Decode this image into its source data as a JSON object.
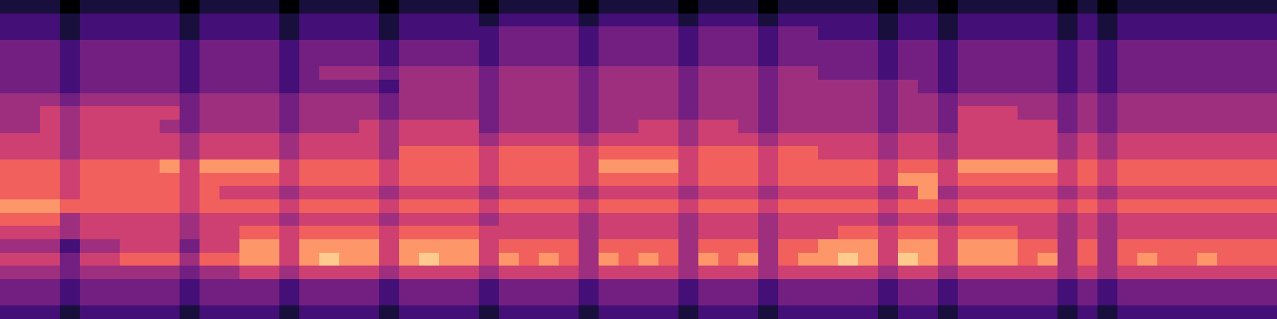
{
  "chart_data": {
    "type": "heatmap",
    "tick_labels": false,
    "zlim": [
      0,
      9
    ],
    "cells": [
      [
        1,
        1,
        1,
        0,
        1,
        1,
        1,
        1,
        1,
        0,
        1,
        1,
        1,
        1,
        0,
        1,
        1,
        1,
        1,
        0,
        1,
        1,
        1,
        1,
        0,
        1,
        1,
        1,
        1,
        0,
        1,
        1,
        1,
        1,
        0,
        1,
        1,
        1,
        0,
        1,
        1,
        1,
        1,
        1,
        0,
        1,
        1,
        0,
        1,
        1,
        1,
        1,
        1,
        0,
        1,
        0,
        1,
        1,
        1,
        1,
        1,
        1,
        1,
        1
      ],
      [
        2,
        2,
        2,
        1,
        2,
        2,
        2,
        2,
        2,
        1,
        2,
        2,
        2,
        2,
        1,
        2,
        2,
        2,
        2,
        1,
        2,
        2,
        2,
        2,
        1,
        2,
        2,
        2,
        2,
        1,
        2,
        2,
        2,
        2,
        1,
        2,
        2,
        2,
        1,
        2,
        2,
        2,
        2,
        2,
        1,
        2,
        2,
        1,
        2,
        2,
        2,
        2,
        2,
        1,
        2,
        1,
        2,
        2,
        2,
        2,
        2,
        2,
        2,
        2
      ],
      [
        2,
        2,
        2,
        1,
        2,
        2,
        2,
        2,
        2,
        1,
        2,
        2,
        2,
        2,
        1,
        2,
        2,
        2,
        2,
        1,
        2,
        2,
        2,
        2,
        2,
        3,
        3,
        3,
        3,
        2,
        3,
        3,
        3,
        3,
        2,
        3,
        3,
        3,
        2,
        3,
        3,
        2,
        2,
        2,
        1,
        2,
        2,
        1,
        2,
        2,
        2,
        2,
        2,
        1,
        2,
        1,
        2,
        2,
        2,
        2,
        2,
        2,
        2,
        2
      ],
      [
        3,
        3,
        3,
        2,
        3,
        3,
        3,
        3,
        3,
        2,
        3,
        3,
        3,
        3,
        2,
        3,
        3,
        3,
        3,
        2,
        3,
        3,
        3,
        3,
        2,
        3,
        3,
        3,
        3,
        2,
        3,
        3,
        3,
        3,
        2,
        3,
        3,
        3,
        2,
        3,
        3,
        3,
        3,
        3,
        2,
        3,
        3,
        2,
        3,
        3,
        3,
        3,
        3,
        2,
        3,
        2,
        3,
        3,
        3,
        3,
        3,
        3,
        3,
        3
      ],
      [
        3,
        3,
        3,
        2,
        3,
        3,
        3,
        3,
        3,
        2,
        3,
        3,
        3,
        3,
        2,
        3,
        3,
        3,
        3,
        2,
        3,
        3,
        3,
        3,
        2,
        3,
        3,
        3,
        3,
        2,
        3,
        3,
        3,
        3,
        2,
        3,
        3,
        3,
        2,
        3,
        3,
        3,
        3,
        3,
        2,
        3,
        3,
        2,
        3,
        3,
        3,
        3,
        3,
        2,
        3,
        2,
        3,
        3,
        3,
        3,
        3,
        3,
        3,
        3
      ],
      [
        3,
        3,
        3,
        2,
        3,
        3,
        3,
        3,
        3,
        2,
        3,
        3,
        3,
        3,
        2,
        3,
        4,
        4,
        4,
        3,
        4,
        4,
        4,
        4,
        3,
        4,
        4,
        4,
        4,
        3,
        4,
        4,
        4,
        4,
        3,
        4,
        4,
        4,
        3,
        4,
        4,
        3,
        3,
        3,
        2,
        3,
        3,
        2,
        3,
        3,
        3,
        3,
        3,
        2,
        3,
        2,
        3,
        3,
        3,
        3,
        3,
        3,
        3,
        3
      ],
      [
        3,
        3,
        3,
        2,
        3,
        3,
        3,
        3,
        3,
        2,
        3,
        3,
        3,
        3,
        2,
        3,
        3,
        3,
        3,
        2,
        4,
        4,
        4,
        4,
        3,
        4,
        4,
        4,
        4,
        3,
        4,
        4,
        4,
        4,
        3,
        4,
        4,
        4,
        3,
        4,
        4,
        4,
        4,
        4,
        3,
        4,
        3,
        2,
        3,
        3,
        3,
        3,
        3,
        2,
        3,
        2,
        3,
        3,
        3,
        3,
        3,
        3,
        3,
        3
      ],
      [
        4,
        4,
        4,
        3,
        4,
        4,
        4,
        4,
        4,
        3,
        4,
        4,
        4,
        4,
        3,
        4,
        4,
        4,
        4,
        3,
        4,
        4,
        4,
        4,
        3,
        4,
        4,
        4,
        4,
        3,
        4,
        4,
        4,
        4,
        3,
        4,
        4,
        4,
        3,
        4,
        4,
        4,
        4,
        4,
        3,
        4,
        4,
        3,
        4,
        4,
        4,
        4,
        4,
        3,
        4,
        3,
        4,
        4,
        4,
        4,
        4,
        4,
        4,
        4
      ],
      [
        4,
        4,
        5,
        4,
        5,
        5,
        5,
        5,
        5,
        3,
        4,
        4,
        4,
        4,
        3,
        4,
        4,
        4,
        4,
        3,
        4,
        4,
        4,
        4,
        3,
        4,
        4,
        4,
        4,
        3,
        4,
        4,
        4,
        4,
        3,
        4,
        4,
        4,
        3,
        4,
        4,
        4,
        4,
        4,
        3,
        4,
        4,
        3,
        5,
        5,
        5,
        4,
        4,
        3,
        4,
        3,
        4,
        4,
        4,
        4,
        4,
        4,
        4,
        4
      ],
      [
        4,
        4,
        5,
        4,
        5,
        5,
        5,
        5,
        4,
        3,
        4,
        4,
        4,
        4,
        3,
        4,
        4,
        4,
        5,
        4,
        5,
        5,
        5,
        5,
        3,
        4,
        4,
        4,
        4,
        3,
        4,
        4,
        5,
        5,
        4,
        5,
        5,
        4,
        3,
        4,
        4,
        4,
        4,
        4,
        3,
        4,
        4,
        3,
        5,
        5,
        5,
        5,
        5,
        3,
        4,
        3,
        4,
        4,
        4,
        4,
        4,
        4,
        4,
        4
      ],
      [
        5,
        5,
        5,
        4,
        5,
        5,
        5,
        5,
        5,
        4,
        5,
        5,
        5,
        5,
        4,
        5,
        5,
        5,
        5,
        4,
        5,
        5,
        5,
        5,
        4,
        5,
        5,
        5,
        5,
        4,
        5,
        5,
        5,
        5,
        4,
        5,
        5,
        5,
        4,
        5,
        5,
        5,
        5,
        5,
        4,
        5,
        5,
        4,
        5,
        5,
        5,
        5,
        5,
        4,
        5,
        4,
        5,
        5,
        5,
        5,
        5,
        5,
        5,
        5
      ],
      [
        5,
        5,
        5,
        4,
        5,
        5,
        5,
        5,
        5,
        4,
        5,
        5,
        5,
        5,
        4,
        5,
        5,
        5,
        5,
        4,
        6,
        6,
        6,
        6,
        5,
        6,
        6,
        6,
        6,
        5,
        6,
        6,
        6,
        6,
        5,
        6,
        6,
        6,
        5,
        6,
        6,
        5,
        5,
        5,
        4,
        5,
        5,
        4,
        5,
        5,
        5,
        5,
        5,
        4,
        5,
        4,
        5,
        5,
        5,
        5,
        5,
        5,
        5,
        5
      ],
      [
        6,
        6,
        6,
        5,
        6,
        6,
        6,
        6,
        7,
        5,
        7,
        7,
        7,
        7,
        5,
        6,
        6,
        6,
        6,
        5,
        6,
        6,
        6,
        6,
        5,
        6,
        6,
        6,
        6,
        5,
        7,
        7,
        7,
        7,
        5,
        6,
        6,
        6,
        5,
        6,
        6,
        6,
        6,
        6,
        5,
        6,
        6,
        5,
        7,
        7,
        7,
        7,
        7,
        5,
        6,
        5,
        6,
        6,
        6,
        6,
        6,
        6,
        6,
        6
      ],
      [
        6,
        6,
        6,
        5,
        6,
        6,
        6,
        6,
        6,
        5,
        6,
        6,
        6,
        6,
        5,
        6,
        6,
        6,
        6,
        5,
        6,
        6,
        6,
        6,
        5,
        6,
        6,
        6,
        6,
        5,
        6,
        6,
        6,
        6,
        5,
        6,
        6,
        6,
        5,
        6,
        6,
        6,
        6,
        6,
        5,
        7,
        7,
        5,
        6,
        6,
        6,
        6,
        6,
        5,
        6,
        5,
        6,
        6,
        6,
        6,
        6,
        6,
        6,
        6
      ],
      [
        6,
        6,
        6,
        5,
        6,
        6,
        6,
        6,
        6,
        5,
        6,
        5,
        5,
        5,
        4,
        5,
        5,
        5,
        5,
        4,
        5,
        5,
        5,
        5,
        4,
        5,
        5,
        5,
        5,
        4,
        5,
        5,
        5,
        5,
        4,
        5,
        5,
        5,
        4,
        5,
        5,
        5,
        5,
        5,
        4,
        5,
        7,
        4,
        5,
        5,
        5,
        5,
        5,
        4,
        5,
        4,
        5,
        5,
        5,
        5,
        5,
        5,
        5,
        5
      ],
      [
        7,
        7,
        7,
        6,
        6,
        6,
        6,
        6,
        6,
        5,
        6,
        6,
        6,
        6,
        5,
        6,
        6,
        6,
        6,
        5,
        6,
        6,
        6,
        6,
        5,
        6,
        6,
        6,
        6,
        5,
        6,
        6,
        6,
        6,
        5,
        6,
        6,
        6,
        5,
        6,
        6,
        6,
        6,
        6,
        5,
        6,
        6,
        5,
        6,
        6,
        6,
        6,
        6,
        5,
        6,
        5,
        6,
        6,
        6,
        6,
        6,
        6,
        6,
        6
      ],
      [
        6,
        6,
        6,
        4,
        5,
        5,
        5,
        5,
        5,
        4,
        5,
        5,
        5,
        5,
        4,
        5,
        5,
        5,
        5,
        4,
        5,
        5,
        5,
        5,
        4,
        5,
        5,
        5,
        5,
        4,
        5,
        5,
        5,
        5,
        4,
        5,
        5,
        5,
        4,
        5,
        5,
        5,
        5,
        5,
        4,
        5,
        5,
        4,
        5,
        5,
        5,
        5,
        5,
        4,
        5,
        4,
        5,
        5,
        5,
        5,
        5,
        5,
        5,
        5
      ],
      [
        5,
        5,
        5,
        4,
        5,
        5,
        5,
        5,
        5,
        4,
        5,
        5,
        6,
        6,
        5,
        6,
        6,
        6,
        6,
        5,
        6,
        6,
        6,
        6,
        5,
        5,
        5,
        5,
        5,
        4,
        5,
        5,
        5,
        5,
        4,
        5,
        5,
        5,
        4,
        5,
        5,
        5,
        6,
        6,
        5,
        6,
        6,
        5,
        6,
        6,
        6,
        5,
        5,
        4,
        5,
        4,
        5,
        5,
        5,
        5,
        5,
        5,
        5,
        5
      ],
      [
        4,
        4,
        4,
        2,
        4,
        4,
        5,
        5,
        5,
        3,
        5,
        5,
        7,
        7,
        5,
        7,
        7,
        7,
        7,
        5,
        7,
        7,
        7,
        7,
        5,
        6,
        6,
        6,
        6,
        4,
        6,
        6,
        6,
        6,
        4,
        6,
        6,
        6,
        4,
        6,
        6,
        7,
        7,
        7,
        5,
        7,
        7,
        5,
        7,
        7,
        7,
        6,
        6,
        4,
        6,
        4,
        6,
        6,
        6,
        6,
        6,
        6,
        6,
        6
      ],
      [
        5,
        5,
        5,
        3,
        5,
        5,
        6,
        6,
        6,
        4,
        6,
        6,
        7,
        7,
        5,
        7,
        8,
        7,
        7,
        5,
        7,
        8,
        7,
        7,
        5,
        7,
        6,
        7,
        6,
        4,
        7,
        6,
        7,
        6,
        4,
        7,
        6,
        7,
        4,
        6,
        7,
        7,
        8,
        7,
        5,
        8,
        7,
        5,
        7,
        7,
        7,
        6,
        7,
        4,
        6,
        4,
        6,
        7,
        6,
        6,
        7,
        6,
        6,
        6
      ],
      [
        4,
        4,
        4,
        3,
        4,
        4,
        4,
        4,
        4,
        3,
        4,
        4,
        5,
        5,
        4,
        5,
        5,
        5,
        5,
        4,
        5,
        5,
        5,
        5,
        4,
        5,
        5,
        5,
        5,
        4,
        5,
        5,
        5,
        5,
        4,
        5,
        5,
        5,
        4,
        5,
        5,
        5,
        5,
        5,
        4,
        5,
        5,
        4,
        5,
        5,
        5,
        5,
        5,
        4,
        5,
        4,
        5,
        5,
        5,
        5,
        5,
        5,
        5,
        5
      ],
      [
        3,
        3,
        3,
        2,
        3,
        3,
        3,
        3,
        3,
        2,
        3,
        3,
        3,
        3,
        2,
        3,
        3,
        3,
        3,
        2,
        3,
        3,
        3,
        3,
        2,
        3,
        3,
        3,
        3,
        2,
        3,
        3,
        3,
        3,
        2,
        3,
        3,
        3,
        2,
        3,
        3,
        3,
        3,
        3,
        2,
        3,
        3,
        2,
        3,
        3,
        3,
        3,
        3,
        2,
        3,
        2,
        3,
        3,
        3,
        3,
        3,
        3,
        3,
        3
      ],
      [
        3,
        3,
        3,
        2,
        3,
        3,
        3,
        3,
        3,
        2,
        3,
        3,
        3,
        3,
        2,
        3,
        3,
        3,
        3,
        2,
        3,
        3,
        3,
        3,
        2,
        3,
        3,
        3,
        3,
        2,
        3,
        3,
        3,
        3,
        2,
        3,
        3,
        3,
        2,
        3,
        3,
        3,
        3,
        3,
        2,
        3,
        3,
        2,
        3,
        3,
        3,
        3,
        3,
        2,
        3,
        2,
        3,
        3,
        3,
        3,
        3,
        3,
        3,
        3
      ],
      [
        2,
        2,
        2,
        1,
        2,
        2,
        2,
        2,
        2,
        1,
        2,
        2,
        2,
        2,
        1,
        2,
        2,
        2,
        2,
        1,
        2,
        2,
        2,
        2,
        1,
        2,
        2,
        2,
        2,
        1,
        2,
        2,
        2,
        2,
        1,
        2,
        2,
        2,
        1,
        2,
        2,
        2,
        2,
        2,
        1,
        2,
        2,
        1,
        2,
        2,
        2,
        2,
        2,
        1,
        2,
        1,
        2,
        2,
        2,
        2,
        2,
        2,
        2,
        2
      ]
    ]
  }
}
